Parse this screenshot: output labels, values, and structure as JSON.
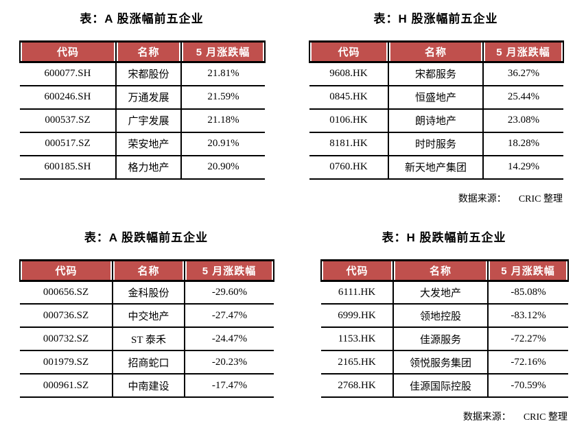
{
  "page": {
    "source_label": "数据来源：",
    "source_value": "CRIC 整理",
    "colors": {
      "header_bg": "#C0504D",
      "header_text": "#ffffff",
      "border": "#000000",
      "text": "#000000",
      "page_bg": "#ffffff"
    }
  },
  "tables": [
    {
      "id": "a-share-gainers",
      "title": "表：A 股涨幅前五企业",
      "headers": [
        "代码",
        "名称",
        "5 月涨跌幅"
      ],
      "rows": [
        [
          "600077.SH",
          "宋都股份",
          "21.81%"
        ],
        [
          "600246.SH",
          "万通发展",
          "21.59%"
        ],
        [
          "000537.SZ",
          "广宇发展",
          "21.18%"
        ],
        [
          "000517.SZ",
          "荣安地产",
          "20.91%"
        ],
        [
          "600185.SH",
          "格力地产",
          "20.90%"
        ]
      ]
    },
    {
      "id": "h-share-gainers",
      "title": "表：H 股涨幅前五企业",
      "headers": [
        "代码",
        "名称",
        "5 月涨跌幅"
      ],
      "rows": [
        [
          "9608.HK",
          "宋都服务",
          "36.27%"
        ],
        [
          "0845.HK",
          "恒盛地产",
          "25.44%"
        ],
        [
          "0106.HK",
          "朗诗地产",
          "23.08%"
        ],
        [
          "8181.HK",
          "时时服务",
          "18.28%"
        ],
        [
          "0760.HK",
          "新天地产集团",
          "14.29%"
        ]
      ]
    },
    {
      "id": "a-share-losers",
      "title": "表：A 股跌幅前五企业",
      "headers": [
        "代码",
        "名称",
        "5 月涨跌幅"
      ],
      "rows": [
        [
          "000656.SZ",
          "金科股份",
          "-29.60%"
        ],
        [
          "000736.SZ",
          "中交地产",
          "-27.47%"
        ],
        [
          "000732.SZ",
          "ST 泰禾",
          "-24.47%"
        ],
        [
          "001979.SZ",
          "招商蛇口",
          "-20.23%"
        ],
        [
          "000961.SZ",
          "中南建设",
          "-17.47%"
        ]
      ]
    },
    {
      "id": "h-share-losers",
      "title": "表：H 股跌幅前五企业",
      "headers": [
        "代码",
        "名称",
        "5 月涨跌幅"
      ],
      "rows": [
        [
          "6111.HK",
          "大发地产",
          "-85.08%"
        ],
        [
          "6999.HK",
          "领地控股",
          "-83.12%"
        ],
        [
          "1153.HK",
          "佳源服务",
          "-72.27%"
        ],
        [
          "2165.HK",
          "领悦服务集团",
          "-72.16%"
        ],
        [
          "2768.HK",
          "佳源国际控股",
          "-70.59%"
        ]
      ]
    }
  ]
}
